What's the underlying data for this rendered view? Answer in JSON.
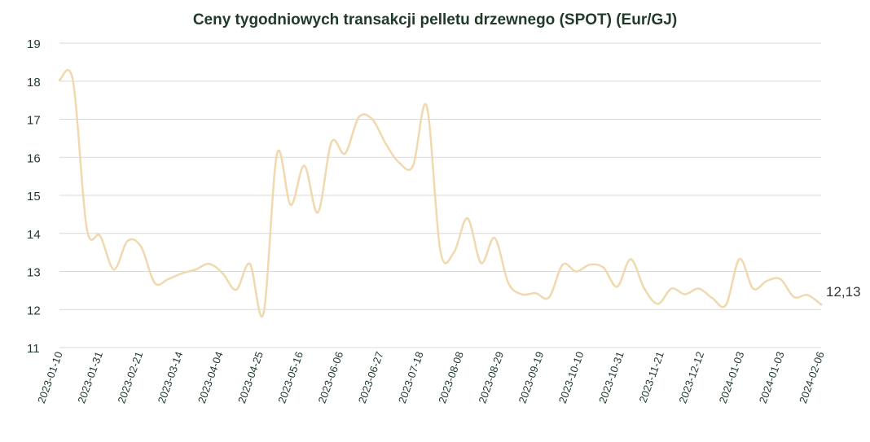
{
  "chart_data": {
    "type": "line",
    "title": "Ceny tygodniowych transakcji pelletu drzewnego (SPOT) (Eur/GJ)",
    "xlabel": "",
    "ylabel": "",
    "ylim": [
      11,
      19
    ],
    "yticks": [
      "11",
      "12",
      "13",
      "14",
      "15",
      "16",
      "17",
      "18",
      "19"
    ],
    "grid": true,
    "x_tick_labels": [
      "2023-01-10",
      "2023-01-31",
      "2023-02-21",
      "2023-03-14",
      "2023-04-04",
      "2023-04-25",
      "2023-05-16",
      "2023-06-06",
      "2023-06-27",
      "2023-07-18",
      "2023-08-08",
      "2023-08-29",
      "2023-09-19",
      "2023-10-10",
      "2023-10-31",
      "2023-11-21",
      "2023-12-12",
      "2024-01-03",
      "2024-01-03",
      "2024-02-06"
    ],
    "series": [
      {
        "color": "#f0d9ae",
        "values": [
          18.03,
          18.0,
          14.15,
          13.93,
          13.05,
          13.8,
          13.65,
          12.7,
          12.8,
          12.95,
          13.05,
          13.2,
          12.95,
          12.52,
          13.2,
          11.9,
          16.1,
          14.75,
          15.78,
          14.55,
          16.4,
          16.1,
          17.05,
          17.0,
          16.35,
          15.85,
          15.78,
          17.35,
          13.55,
          13.5,
          14.4,
          13.22,
          13.88,
          12.7,
          12.4,
          12.43,
          12.32,
          13.18,
          13.0,
          13.18,
          13.1,
          12.6,
          13.32,
          12.55,
          12.15,
          12.55,
          12.4,
          12.55,
          12.3,
          12.12,
          13.33,
          12.55,
          12.75,
          12.8,
          12.33,
          12.38,
          12.13
        ],
        "last_value_label": "12,13"
      }
    ]
  }
}
